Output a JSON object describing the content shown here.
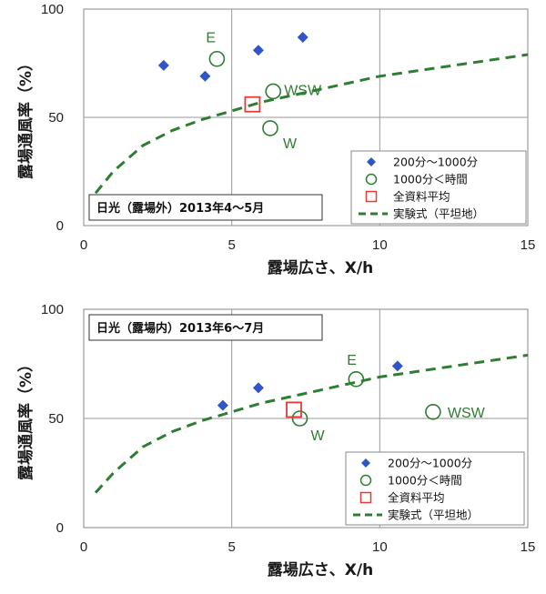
{
  "chart_data": [
    {
      "type": "scatter",
      "title": "日光（露場外）2013年4～5月",
      "xlabel": "露場広さ、X/h",
      "ylabel": "露場通風率（%）",
      "xlim": [
        0,
        15
      ],
      "ylim": [
        0,
        100
      ],
      "xticks": [
        0,
        5,
        10,
        15
      ],
      "yticks": [
        0,
        50,
        100
      ],
      "grid": true,
      "legend_position": "bottom-right",
      "series": [
        {
          "name": "200分～1000分",
          "marker": "diamond",
          "color": "#2f55c8",
          "points": [
            [
              2.7,
              74
            ],
            [
              4.1,
              69
            ],
            [
              5.9,
              81
            ],
            [
              7.4,
              87
            ]
          ]
        },
        {
          "name": "1000分＜時間",
          "marker": "open-circle",
          "color": "#2e7d32",
          "points": [
            [
              4.5,
              77
            ],
            [
              6.4,
              62
            ],
            [
              6.3,
              45
            ]
          ],
          "labels": [
            "E",
            "WSW",
            "W"
          ]
        },
        {
          "name": "全資料平均",
          "marker": "open-square",
          "color": "#e53935",
          "points": [
            [
              5.7,
              56
            ]
          ]
        },
        {
          "name": "実験式（平坦地）",
          "type": "line",
          "style": "dashed",
          "color": "#2e7d32",
          "x": [
            0.4,
            1,
            2,
            3,
            4,
            5,
            6,
            8,
            10,
            12,
            15
          ],
          "y": [
            15,
            25,
            37,
            44,
            49,
            53,
            57,
            63,
            69,
            73,
            79
          ]
        }
      ]
    },
    {
      "type": "scatter",
      "title": "日光（露場内）2013年6～7月",
      "xlabel": "露場広さ、X/h",
      "ylabel": "露場通風率（%）",
      "xlim": [
        0,
        15
      ],
      "ylim": [
        0,
        100
      ],
      "xticks": [
        0,
        5,
        10,
        15
      ],
      "yticks": [
        0,
        50,
        100
      ],
      "grid": true,
      "legend_position": "bottom-right",
      "series": [
        {
          "name": "200分～1000分",
          "marker": "diamond",
          "color": "#2f55c8",
          "points": [
            [
              4.7,
              56
            ],
            [
              5.9,
              64
            ],
            [
              10.6,
              74
            ]
          ]
        },
        {
          "name": "1000分＜時間",
          "marker": "open-circle",
          "color": "#2e7d32",
          "points": [
            [
              9.2,
              68
            ],
            [
              7.3,
              50
            ],
            [
              11.8,
              53
            ]
          ],
          "labels": [
            "E",
            "W",
            "WSW"
          ]
        },
        {
          "name": "全資料平均",
          "marker": "open-square",
          "color": "#e53935",
          "points": [
            [
              7.1,
              54
            ]
          ]
        },
        {
          "name": "実験式（平坦地）",
          "type": "line",
          "style": "dashed",
          "color": "#2e7d32",
          "x": [
            0.4,
            1,
            2,
            3,
            4,
            5,
            6,
            8,
            10,
            12,
            15
          ],
          "y": [
            16,
            25,
            37,
            44,
            49,
            53,
            57,
            63,
            69,
            73,
            79
          ]
        }
      ]
    }
  ]
}
